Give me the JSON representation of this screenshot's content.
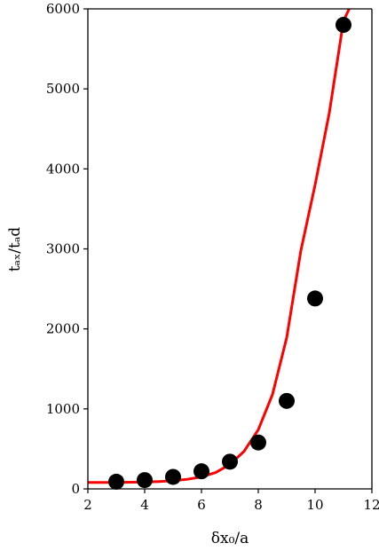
{
  "chart_data": {
    "type": "scatter",
    "title": "",
    "xlabel": "δx₀/a",
    "ylabel": "tₐₓ/tₐd",
    "xlim": [
      2,
      12
    ],
    "ylim": [
      0,
      6000
    ],
    "xticks": [
      2,
      4,
      6,
      8,
      10,
      12
    ],
    "yticks": [
      0,
      1000,
      2000,
      3000,
      4000,
      5000,
      6000
    ],
    "grid": false,
    "legend": "none",
    "series": [
      {
        "kind": "points",
        "color": "#000000",
        "x": [
          3,
          4,
          5,
          6,
          7,
          8,
          9,
          10,
          11
        ],
        "y": [
          90,
          110,
          150,
          220,
          340,
          580,
          1100,
          2380,
          5800
        ]
      },
      {
        "kind": "fit-line",
        "color": "#ff0000",
        "x": [
          2,
          2.5,
          3,
          3.5,
          4,
          4.5,
          5,
          5.5,
          6,
          6.5,
          7,
          7.5,
          8,
          8.5,
          9,
          9.5,
          10,
          10.5,
          11,
          11.2
        ],
        "y": [
          80,
          80,
          81,
          83,
          86,
          92,
          102,
          120,
          150,
          205,
          305,
          470,
          740,
          1180,
          1890,
          2980,
          3800,
          4700,
          5850,
          6000
        ]
      }
    ]
  }
}
